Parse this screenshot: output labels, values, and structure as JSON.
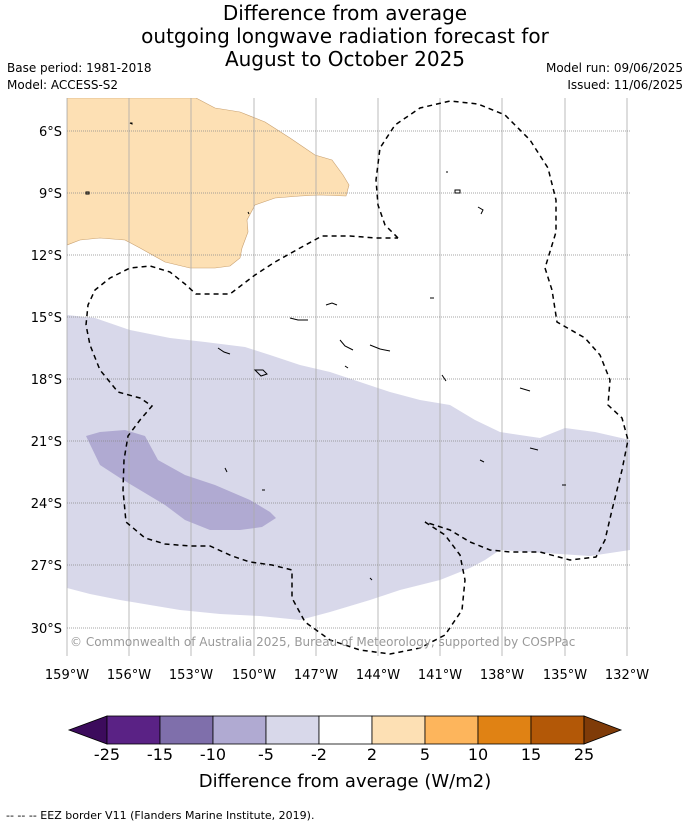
{
  "title": {
    "line1": "Difference from average",
    "line2": "outgoing longwave radiation forecast for",
    "line3": "August to October 2025"
  },
  "meta": {
    "base_period": "Base period: 1981-2018",
    "model": "Model: ACCESS-S2",
    "model_run": "Model run: 09/06/2025",
    "issued": "Issued: 11/06/2025"
  },
  "map": {
    "lat_labels": [
      "6°S",
      "9°S",
      "12°S",
      "15°S",
      "18°S",
      "21°S",
      "24°S",
      "27°S",
      "30°S"
    ],
    "lon_labels": [
      "159°W",
      "156°W",
      "153°W",
      "150°W",
      "147°W",
      "144°W",
      "141°W",
      "138°W",
      "135°W",
      "132°W"
    ],
    "copyright": "© Commonwealth of Australia 2025, Bureau of Meteorology, supported by COSPPac",
    "colors": {
      "positive_2_5": "#fde0b4",
      "negative_5_2": "#d8d8ea",
      "negative_10_5": "#b0aad2",
      "gridline": "#aaaaaa"
    }
  },
  "colorbar": {
    "tick_labels": [
      "-25",
      "-15",
      "-10",
      "-5",
      "-2",
      "2",
      "5",
      "10",
      "15",
      "25"
    ],
    "colors": [
      "#3c0b5c",
      "#5a2285",
      "#7f6fab",
      "#b0aad2",
      "#d8d8ea",
      "#ffffff",
      "#fde0b4",
      "#fdb55c",
      "#e08214",
      "#b35807",
      "#7f3b08"
    ],
    "title": "Difference from average (W/m2)"
  },
  "footer": {
    "legend": "--  --  -- EEZ border V11 (Flanders Marine Institute, 2019)."
  }
}
